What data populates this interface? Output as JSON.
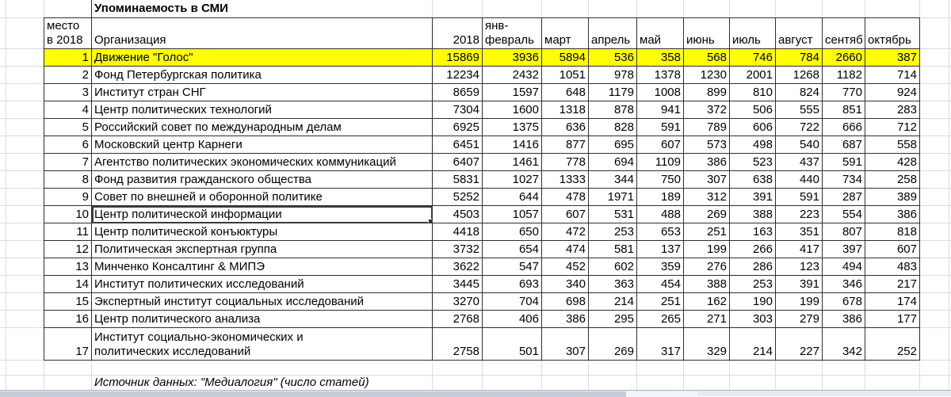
{
  "title": "Упоминаемость в СМИ",
  "source_note": "Источник данных: \"Медиалогия\" (число статей)",
  "colors": {
    "highlight_row": "#ffff00",
    "cell_border": "#2f2f2f",
    "gridline": "#d7dce5"
  },
  "table": {
    "rank_header": "место в 2018",
    "org_header": "Организация",
    "columns": [
      "2018",
      "янв-февраль",
      "март",
      "апрель",
      "май",
      "июнь",
      "июль",
      "август",
      "сентяб",
      "октябрь"
    ],
    "rows": [
      {
        "rank": "1",
        "org": "Движение \"Голос\"",
        "values": [
          "15869",
          "3936",
          "5894",
          "536",
          "358",
          "568",
          "746",
          "784",
          "2660",
          "387"
        ],
        "highlighted": true
      },
      {
        "rank": "2",
        "org": "Фонд Петербургская политика",
        "values": [
          "12234",
          "2432",
          "1051",
          "978",
          "1378",
          "1230",
          "2001",
          "1268",
          "1182",
          "714"
        ]
      },
      {
        "rank": "3",
        "org": "Институт стран СНГ",
        "values": [
          "8659",
          "1597",
          "648",
          "1179",
          "1008",
          "899",
          "810",
          "824",
          "770",
          "924"
        ]
      },
      {
        "rank": "4",
        "org": "Центр политических технологий",
        "values": [
          "7304",
          "1600",
          "1318",
          "878",
          "941",
          "372",
          "506",
          "555",
          "851",
          "283"
        ]
      },
      {
        "rank": "5",
        "org": "Российский совет по международным делам",
        "values": [
          "6925",
          "1375",
          "636",
          "828",
          "591",
          "789",
          "606",
          "722",
          "666",
          "712"
        ]
      },
      {
        "rank": "6",
        "org": "Московский центр Карнеги",
        "values": [
          "6451",
          "1416",
          "877",
          "695",
          "607",
          "573",
          "498",
          "540",
          "687",
          "558"
        ]
      },
      {
        "rank": "7",
        "org": "Агентство политических экономических коммуникаций",
        "values": [
          "6407",
          "1461",
          "778",
          "694",
          "1109",
          "386",
          "523",
          "437",
          "591",
          "428"
        ]
      },
      {
        "rank": "8",
        "org": "Фонд развития гражданского общества",
        "values": [
          "5831",
          "1027",
          "1333",
          "344",
          "750",
          "307",
          "638",
          "440",
          "734",
          "258"
        ]
      },
      {
        "rank": "9",
        "org": "Совет по внешней и оборонной политике",
        "values": [
          "5252",
          "644",
          "478",
          "1971",
          "189",
          "312",
          "391",
          "591",
          "287",
          "389"
        ]
      },
      {
        "rank": "10",
        "org": "Центр политической информации",
        "values": [
          "4503",
          "1057",
          "607",
          "531",
          "488",
          "269",
          "388",
          "223",
          "554",
          "386"
        ],
        "selected": true
      },
      {
        "rank": "11",
        "org": "Центр политической конъюктуры",
        "values": [
          "4418",
          "650",
          "472",
          "253",
          "653",
          "251",
          "163",
          "351",
          "807",
          "818"
        ]
      },
      {
        "rank": "12",
        "org": "Политическая экспертная группа",
        "values": [
          "3732",
          "654",
          "474",
          "581",
          "137",
          "199",
          "266",
          "417",
          "397",
          "607"
        ]
      },
      {
        "rank": "13",
        "org": "Минченко Консалтинг & МИПЭ",
        "values": [
          "3622",
          "547",
          "452",
          "602",
          "359",
          "276",
          "286",
          "123",
          "494",
          "483"
        ]
      },
      {
        "rank": "14",
        "org": "Институт политических исследований",
        "values": [
          "3445",
          "693",
          "340",
          "363",
          "454",
          "388",
          "253",
          "391",
          "346",
          "217"
        ]
      },
      {
        "rank": "15",
        "org": "Экспертный институт социальных исследований",
        "values": [
          "3270",
          "704",
          "698",
          "214",
          "251",
          "162",
          "190",
          "199",
          "678",
          "174"
        ]
      },
      {
        "rank": "16",
        "org": "Центр политического анализа",
        "values": [
          "2768",
          "406",
          "386",
          "295",
          "265",
          "271",
          "303",
          "279",
          "386",
          "177"
        ]
      },
      {
        "rank": "17",
        "org": [
          "Институт социально-экономических и",
          "политических исследований"
        ],
        "values": [
          "2758",
          "501",
          "307",
          "269",
          "317",
          "329",
          "214",
          "227",
          "342",
          "252"
        ],
        "tall": true
      }
    ]
  }
}
